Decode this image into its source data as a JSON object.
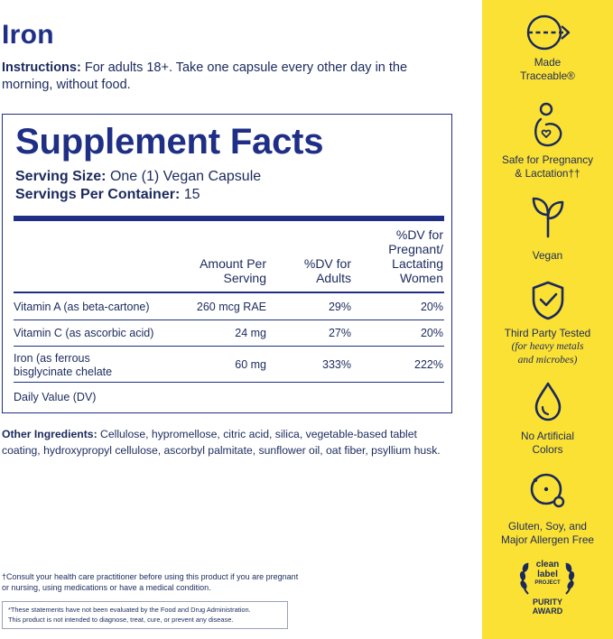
{
  "product": {
    "title": "Iron",
    "instructions_label": "Instructions:",
    "instructions_text": "For adults 18+. Take one capsule every other day in the morning, without food."
  },
  "facts": {
    "heading": "Supplement Facts",
    "serving_size_label": "Serving Size:",
    "serving_size_value": "One (1) Vegan Capsule",
    "servings_label": "Servings Per Container:",
    "servings_value": "15",
    "col_amount_1": "Amount Per",
    "col_amount_2": "Serving",
    "col_dv_adults_1": "%DV for",
    "col_dv_adults_2": "Adults",
    "col_dv_preg_1": "%DV for",
    "col_dv_preg_2": "Pregnant/",
    "col_dv_preg_3": "Lactating",
    "col_dv_preg_4": "Women",
    "rows": [
      {
        "name": "Vitamin A (as beta-cartone)",
        "amount": "260 mcg RAE",
        "dv_adults": "29%",
        "dv_preg": "20%"
      },
      {
        "name": "Vitamin C (as ascorbic acid)",
        "amount": "24 mg",
        "dv_adults": "27%",
        "dv_preg": "20%"
      },
      {
        "name_1": "Iron (as ferrous",
        "name_2": "bisglycinate chelate",
        "amount": "60 mg",
        "dv_adults": "333%",
        "dv_preg": "222%"
      }
    ],
    "footer": "Daily Value (DV)"
  },
  "other": {
    "label": "Other Ingredients:",
    "text": "Cellulose, hypromellose, citric acid, silica, vegetable-based tablet coating, hydroxypropyl cellulose, ascorbyl palmitate, sunflower oil, oat fiber, psyllium husk."
  },
  "consult": "†Consult your health care practitioner before using this product if you are pregnant or nursing, using medications or have a medical condition.",
  "fda": {
    "line1": "*These statements have not been evaluated by the Food and Drug Administration.",
    "line2": "This product is not intended to diagnose, treat, cure, or prevent any disease."
  },
  "badges": {
    "traceable_1": "Made",
    "traceable_2": "Traceable®",
    "pregnancy_1": "Safe for Pregnancy",
    "pregnancy_2": "& Lactation††",
    "vegan": "Vegan",
    "tested": "Third Party Tested",
    "tested_sub_1": "(for heavy metals",
    "tested_sub_2": "and microbes)",
    "colors_1": "No Artificial",
    "colors_2": "Colors",
    "allergen_1": "Gluten, Soy, and",
    "allergen_2": "Major Allergen Free"
  },
  "award": {
    "line1": "clean",
    "line2": "label",
    "line3": "PROJECT",
    "line4": "PURITY",
    "line5": "AWARD"
  },
  "colors": {
    "navy": "#1b2a5c",
    "heading_blue": "#1f2f86",
    "sidebar_yellow": "#fbe133"
  },
  "icons": [
    "traceable-arrow-icon",
    "pregnancy-icon",
    "vegan-sprout-icon",
    "shield-check-icon",
    "drop-icon",
    "allergen-circle-icon",
    "laurel-icon"
  ]
}
